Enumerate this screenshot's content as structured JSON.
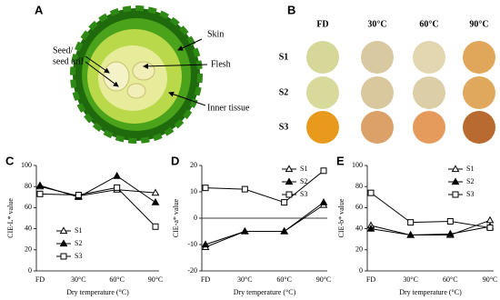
{
  "panel_a": {
    "label": "A",
    "skin": "Skin",
    "seed": [
      "Seed/",
      "seed aril"
    ],
    "flesh": "Flesh",
    "inner": "Inner tissue"
  },
  "panel_b": {
    "label": "B",
    "columns": [
      "FD",
      "30°C",
      "60°C",
      "90°C"
    ],
    "rows": [
      "S1",
      "S2",
      "S3"
    ]
  },
  "chart_data": [
    {
      "type": "line",
      "panel_label": "C",
      "ylabel": "CIE-L* value",
      "xlabel": "Dry temperature (°C)",
      "categories": [
        "FD",
        "30°C",
        "60°C",
        "90°C"
      ],
      "ylim": [
        0,
        100
      ],
      "yticks": [
        0,
        20,
        40,
        60,
        80,
        100
      ],
      "legend": "lower left",
      "series": [
        {
          "name": "S1",
          "color": "#000000",
          "marker": "triangle-open",
          "values": [
            80,
            71,
            77,
            74
          ]
        },
        {
          "name": "S2",
          "color": "#000000",
          "marker": "triangle-filled",
          "values": [
            81,
            70,
            90,
            65
          ]
        },
        {
          "name": "S3",
          "color": "#000000",
          "marker": "square-open",
          "values": [
            73,
            72,
            79,
            42
          ]
        }
      ]
    },
    {
      "type": "line",
      "panel_label": "D",
      "ylabel": "CIE-a* value",
      "xlabel": "Dry temperature (°C)",
      "categories": [
        "FD",
        "30°C",
        "60°C",
        "90°C"
      ],
      "ylim": [
        -20,
        20
      ],
      "yticks": [
        -20,
        -10,
        0,
        10,
        20
      ],
      "reference_line": 0,
      "legend": "upper right",
      "series": [
        {
          "name": "S1",
          "color": "#000000",
          "marker": "triangle-open",
          "values": [
            -11,
            -5,
            -5,
            5
          ]
        },
        {
          "name": "S2",
          "color": "#000000",
          "marker": "triangle-filled",
          "values": [
            -10,
            -5,
            -5,
            6
          ]
        },
        {
          "name": "S3",
          "color": "#000000",
          "marker": "square-open",
          "values": [
            11.5,
            11,
            6,
            18
          ]
        }
      ]
    },
    {
      "type": "line",
      "panel_label": "E",
      "ylabel": "CIE-b* value",
      "xlabel": "Dry temperature (°C)",
      "categories": [
        "FD",
        "30°C",
        "60°C",
        "90°C"
      ],
      "ylim": [
        0,
        100
      ],
      "yticks": [
        0,
        20,
        40,
        60,
        80,
        100
      ],
      "legend": "upper right",
      "series": [
        {
          "name": "S1",
          "color": "#000000",
          "marker": "triangle-open",
          "values": [
            43,
            34,
            34,
            48
          ]
        },
        {
          "name": "S2",
          "color": "#000000",
          "marker": "triangle-filled",
          "values": [
            40,
            34,
            35,
            42
          ]
        },
        {
          "name": "S3",
          "color": "#000000",
          "marker": "square-open",
          "values": [
            74,
            46,
            47,
            41
          ]
        }
      ]
    }
  ]
}
